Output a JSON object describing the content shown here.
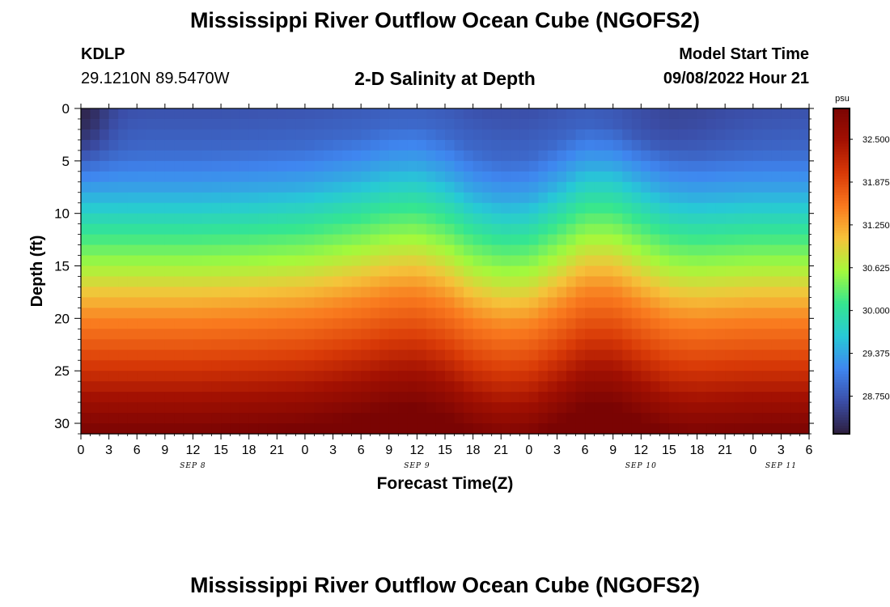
{
  "title": "Mississippi River Outflow Ocean Cube (NGOFS2)",
  "footer_title": "Mississippi River Outflow Ocean Cube (NGOFS2)",
  "station": {
    "id": "KDLP",
    "coords": "29.1210N  89.5470W"
  },
  "subtitle": "2-D Salinity at Depth",
  "model_start": {
    "label": "Model Start Time",
    "value": "09/08/2022 Hour 21"
  },
  "chart_data": {
    "type": "heatmap",
    "title": "2-D Salinity at Depth",
    "xlabel": "Forecast Time(Z)",
    "ylabel": "Depth (ft)",
    "x_start": "2022-09-08T00Z",
    "x_end": "2022-09-11T06Z",
    "x_hours_total": 78,
    "x_tick_labels": [
      "0",
      "3",
      "6",
      "9",
      "12",
      "15",
      "18",
      "21",
      "0",
      "3",
      "6",
      "9",
      "12",
      "15",
      "18",
      "21",
      "0",
      "3",
      "6",
      "9",
      "12",
      "15",
      "18",
      "21",
      "0",
      "3",
      "6"
    ],
    "day_labels": [
      {
        "label": "SEP 8",
        "hour": 12
      },
      {
        "label": "SEP 9",
        "hour": 36
      },
      {
        "label": "SEP 10",
        "hour": 60
      },
      {
        "label": "SEP 11",
        "hour": 75
      }
    ],
    "y_ticks": [
      0,
      5,
      10,
      15,
      20,
      25,
      30
    ],
    "ylim": [
      0,
      31
    ],
    "y_inverted": true,
    "colorbar": {
      "unit": "psu",
      "min": 28.2,
      "max": 32.95,
      "ticks": [
        "32.500",
        "31.875",
        "31.250",
        "30.625",
        "30.000",
        "29.375",
        "28.750"
      ],
      "colormap": [
        "#2d1e3e",
        "#3b4ea8",
        "#3f86f0",
        "#27c9d6",
        "#35e68f",
        "#a4f93b",
        "#f5c33a",
        "#f9791e",
        "#d93a07",
        "#a31102",
        "#7a0403"
      ]
    },
    "salinity_profile": {
      "depth": [
        0,
        4,
        8,
        12,
        16,
        20,
        24,
        28,
        31
      ],
      "value": [
        28.7,
        28.9,
        29.4,
        30.1,
        30.75,
        31.45,
        31.95,
        32.55,
        32.95
      ]
    },
    "depth_shift_by_hour": {
      "hour": [
        0,
        6,
        12,
        18,
        24,
        30,
        33,
        36,
        39,
        42,
        45,
        48,
        51,
        54,
        57,
        60,
        63,
        66,
        72,
        78
      ],
      "shift_ft": [
        0,
        0,
        0,
        0.2,
        0.6,
        1.6,
        2.3,
        2.5,
        1.6,
        0,
        -0.8,
        -0.6,
        0.9,
        2.6,
        2.6,
        1.2,
        0,
        -0.3,
        0,
        0
      ]
    },
    "surface_fresh_patches": [
      {
        "hour": 0,
        "depth": 1,
        "hours_half_width": 3,
        "ft_half_width": 4,
        "delta": -0.45
      },
      {
        "hour": 62,
        "depth": 2,
        "hours_half_width": 8,
        "ft_half_width": 3,
        "delta": -0.15
      }
    ]
  }
}
